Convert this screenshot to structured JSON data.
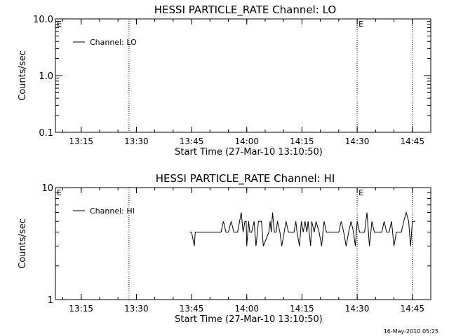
{
  "chart_data": [
    {
      "type": "line",
      "title": "HESSI PARTICLE_RATE Channel: LO",
      "xlabel": "Start Time (27-Mar-10 13:10:50)",
      "ylabel": "Counts/sec",
      "yscale": "log",
      "ylim": [
        0.1,
        10
      ],
      "yticks": [
        0.1,
        1.0,
        10.0
      ],
      "ytick_labels": [
        "0.1",
        "1.0",
        "10.0"
      ],
      "xlim": [
        "13:08",
        "14:50"
      ],
      "xticks": [
        "13:15",
        "13:30",
        "13:45",
        "14:00",
        "14:15",
        "14:30",
        "14:45"
      ],
      "legend": {
        "label": "Channel: LO",
        "position": "top-left"
      },
      "event_markers": [
        {
          "time": "13:28",
          "label": ""
        },
        {
          "time": "14:30",
          "label": "E"
        },
        {
          "time": "14:45",
          "label": ""
        }
      ],
      "edge_label": "E",
      "series": []
    },
    {
      "type": "line",
      "title": "HESSI PARTICLE_RATE Channel: HI",
      "xlabel": "Start Time (27-Mar-10 13:10:50)",
      "ylabel": "Counts/sec",
      "yscale": "log",
      "ylim": [
        1,
        10
      ],
      "yticks": [
        1,
        10
      ],
      "ytick_labels": [
        "1",
        "10"
      ],
      "xlim": [
        "13:08",
        "14:50"
      ],
      "xticks": [
        "13:15",
        "13:30",
        "13:45",
        "14:00",
        "14:15",
        "14:30",
        "14:45"
      ],
      "legend": {
        "label": "Channel: HI",
        "position": "top-left"
      },
      "event_markers": [
        {
          "time": "13:28",
          "label": ""
        },
        {
          "time": "14:30",
          "label": "E"
        },
        {
          "time": "14:45",
          "label": ""
        }
      ],
      "edge_label": "E",
      "series": [
        {
          "name": "Channel: HI",
          "x": [
            "13:44:30",
            "13:45:00",
            "13:45:45",
            "13:46:00",
            "13:53:00",
            "13:53:40",
            "13:54:20",
            "13:54:40",
            "13:55:00",
            "13:55:45",
            "13:56:30",
            "13:57:00",
            "13:57:30",
            "13:58:30",
            "13:59:00",
            "13:59:30",
            "13:59:50",
            "14:00:00",
            "14:00:30",
            "14:00:50",
            "14:01:20",
            "14:02:00",
            "14:02:30",
            "14:03:10",
            "14:04:00",
            "14:04:30",
            "14:06:00",
            "14:06:20",
            "14:06:40",
            "14:07:00",
            "14:07:30",
            "14:08:00",
            "14:08:20",
            "14:09:00",
            "14:09:30",
            "14:10:10",
            "14:10:40",
            "14:11:20",
            "14:12:00",
            "14:12:30",
            "14:12:50",
            "14:13:20",
            "14:13:40",
            "14:14:20",
            "14:14:50",
            "14:15:20",
            "14:15:50",
            "14:16:20",
            "14:16:40",
            "14:17:20",
            "14:17:40",
            "14:18:20",
            "14:18:50",
            "14:19:40",
            "14:20:20",
            "14:21:00",
            "14:21:40",
            "14:22:20",
            "14:23:00",
            "14:23:20",
            "14:25:00",
            "14:25:40",
            "14:26:20",
            "14:27:00",
            "14:27:40",
            "14:28:20",
            "14:29:00",
            "14:29:30",
            "14:30:00",
            "14:30:40",
            "14:31:20",
            "14:32:00",
            "14:32:40",
            "14:33:20",
            "14:34:00",
            "14:34:40",
            "14:35:20",
            "14:36:00",
            "14:36:40",
            "14:37:20",
            "14:38:00",
            "14:38:40",
            "14:39:20",
            "14:40:00",
            "14:40:40",
            "14:41:20",
            "14:42:00",
            "14:42:40",
            "14:43:20",
            "14:44:00",
            "14:44:30",
            "14:45:00",
            "14:45:20",
            "14:45:50"
          ],
          "values": [
            4,
            4,
            3,
            4,
            4,
            5,
            4,
            4,
            4,
            5,
            4,
            4,
            4,
            6,
            4,
            5,
            5,
            3,
            5,
            4,
            4,
            5,
            3,
            5,
            5,
            3,
            4,
            5,
            4,
            6,
            4,
            4,
            5,
            4,
            3,
            4,
            5,
            4,
            4,
            4,
            4,
            5,
            4,
            3,
            5,
            4,
            5,
            4,
            5,
            3,
            5,
            4,
            5,
            4,
            3,
            5,
            4,
            4,
            4,
            4,
            4,
            5,
            4,
            3,
            4,
            5,
            4,
            3,
            5,
            4,
            4,
            4,
            6,
            3,
            5,
            4,
            4,
            4,
            4,
            5,
            4,
            4,
            5,
            3,
            4,
            4,
            4,
            5,
            6,
            5,
            3,
            5,
            5,
            5
          ]
        }
      ]
    }
  ],
  "footer": {
    "date_stamp": "16-May-2010 05:25"
  }
}
